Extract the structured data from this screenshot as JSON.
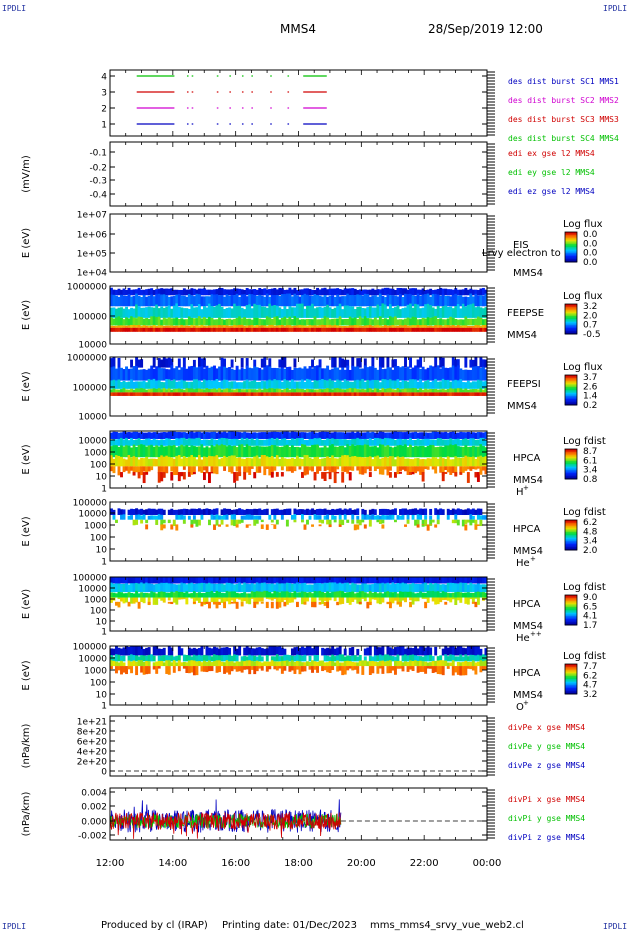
{
  "corners": {
    "label": "IPDLI"
  },
  "header": {
    "spacecraft": "MMS4",
    "date_time": "28/Sep/2019 12:00"
  },
  "footer": {
    "produced_by": "Produced by cl (IRAP)",
    "printing_date": "Printing date: 01/Dec/2023",
    "script_name": "mms_mms4_srvy_vue_web2.cl"
  },
  "colors": {
    "red": "#d00000",
    "magenta": "#d000d0",
    "green": "#00c000",
    "blue": "#0000c0",
    "dark_blue": "#1010a0"
  },
  "chart_data": [
    {
      "id": "burst",
      "type": "line",
      "yticks": [
        "1",
        "2",
        "3",
        "4"
      ],
      "legend": [
        {
          "text": "des dist burst SC1 MMS1",
          "color": "#0000c0"
        },
        {
          "text": "des dist burst SC2 MMS2",
          "color": "#d000d0"
        },
        {
          "text": "des dist burst SC3 MMS3",
          "color": "#d00000"
        },
        {
          "text": "des dist burst SC4 MMS4",
          "color": "#00c000"
        }
      ],
      "segments_hours": [
        [
          12.85,
          14.05
        ],
        [
          14.45,
          14.5
        ],
        [
          14.6,
          14.65
        ],
        [
          15.4,
          15.45
        ],
        [
          15.8,
          15.85
        ],
        [
          16.2,
          16.25
        ],
        [
          16.5,
          16.55
        ],
        [
          17.1,
          17.15
        ],
        [
          17.65,
          17.7
        ],
        [
          18.15,
          18.9
        ]
      ]
    },
    {
      "id": "edi",
      "type": "line",
      "ylabel": "(mV/m)",
      "yticks": [
        "-0.1",
        "-0.2",
        "-0.3",
        "-0.4"
      ],
      "legend": [
        {
          "text": "edi ex gse l2 MMS4",
          "color": "#d00000"
        },
        {
          "text": "edi ey gse l2 MMS4",
          "color": "#00c000"
        },
        {
          "text": "edi ez gse l2 MMS4",
          "color": "#0000c0"
        }
      ]
    },
    {
      "id": "eis",
      "type": "heatmap",
      "ylabel": "E (eV)",
      "yticks": [
        "1e+07",
        "1e+06",
        "1e+05",
        "1e+04"
      ],
      "labels": [
        "EIS",
        "MMS4"
      ],
      "overlay": "Lrvy electron to",
      "cbar_title": "Log flux",
      "cbar_ticks": [
        "0.0",
        "0.0",
        "0.0",
        "0.0"
      ]
    },
    {
      "id": "feepse",
      "type": "heatmap",
      "ylabel": "E (eV)",
      "yticks": [
        "1000000",
        "100000",
        "10000"
      ],
      "labels": [
        "FEEPSE",
        "MMS4"
      ],
      "cbar_title": "Log flux",
      "cbar_ticks": [
        "3.2",
        "2.0",
        "0.7",
        "-0.5"
      ],
      "data_end_hour": 24
    },
    {
      "id": "feepsi",
      "type": "heatmap",
      "ylabel": "E (eV)",
      "yticks": [
        "1000000",
        "100000",
        "10000"
      ],
      "labels": [
        "FEEPSI",
        "MMS4"
      ],
      "cbar_title": "Log flux",
      "cbar_ticks": [
        "3.7",
        "2.6",
        "1.4",
        "0.2"
      ],
      "data_end_hour": 24
    },
    {
      "id": "hpca_h",
      "type": "heatmap",
      "ylabel": "E (eV)",
      "yticks": [
        "10000",
        "1000",
        "100",
        "10",
        "1"
      ],
      "labels": [
        "HPCA",
        "MMS4"
      ],
      "species": "H",
      "species_sup": "+",
      "cbar_title": "Log fdist",
      "cbar_ticks": [
        "8.7",
        "6.1",
        "3.4",
        "0.8"
      ]
    },
    {
      "id": "hpca_he",
      "type": "heatmap",
      "ylabel": "E (eV)",
      "yticks": [
        "100000",
        "10000",
        "1000",
        "100",
        "10",
        "1"
      ],
      "labels": [
        "HPCA",
        "MMS4"
      ],
      "species": "He",
      "species_sup": "+",
      "cbar_title": "Log fdist",
      "cbar_ticks": [
        "6.2",
        "4.8",
        "3.4",
        "2.0"
      ]
    },
    {
      "id": "hpca_hepp",
      "type": "heatmap",
      "ylabel": "E (eV)",
      "yticks": [
        "100000",
        "10000",
        "1000",
        "100",
        "10",
        "1"
      ],
      "labels": [
        "HPCA",
        "MMS4"
      ],
      "species": "He",
      "species_sup": "++",
      "cbar_title": "Log fdist",
      "cbar_ticks": [
        "9.0",
        "6.5",
        "4.1",
        "1.7"
      ]
    },
    {
      "id": "hpca_o",
      "type": "heatmap",
      "ylabel": "E (eV)",
      "yticks": [
        "100000",
        "10000",
        "1000",
        "100",
        "10",
        "1"
      ],
      "labels": [
        "HPCA",
        "MMS4"
      ],
      "species": "O",
      "species_sup": "+",
      "cbar_title": "Log fdist",
      "cbar_ticks": [
        "7.7",
        "6.2",
        "4.7",
        "3.2"
      ]
    },
    {
      "id": "divpe",
      "type": "line",
      "ylabel": "(nPa/km)",
      "yticks": [
        "1e+21",
        "8e+20",
        "6e+20",
        "4e+20",
        "2e+20",
        "0"
      ],
      "legend": [
        {
          "text": "divPe x gse MMS4",
          "color": "#d00000"
        },
        {
          "text": "divPe y gse MMS4",
          "color": "#00c000"
        },
        {
          "text": "divPe z gse MMS4",
          "color": "#0000c0"
        }
      ]
    },
    {
      "id": "divpi",
      "type": "line",
      "ylabel": "(nPa/km)",
      "yticks": [
        "0.004",
        "0.002",
        "0.000",
        "-0.002"
      ],
      "ylim": [
        -0.0035,
        0.0045
      ],
      "legend": [
        {
          "text": "divPi x gse MMS4",
          "color": "#d00000"
        },
        {
          "text": "divPi y gse MMS4",
          "color": "#00c000"
        },
        {
          "text": "divPi z gse MMS4",
          "color": "#0000c0"
        }
      ],
      "data_end_hour": 19.35
    }
  ],
  "xaxis": {
    "ticks": [
      "12:00",
      "14:00",
      "16:00",
      "18:00",
      "20:00",
      "22:00",
      "00:00"
    ],
    "range_hours": [
      12,
      24
    ]
  }
}
